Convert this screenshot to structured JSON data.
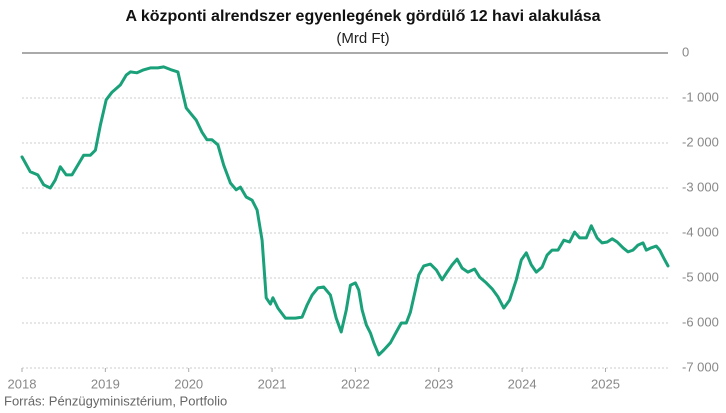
{
  "chart_data": {
    "type": "line",
    "title": "A központi alrendszer egyenlegének gördülő 12 havi alakulása",
    "subtitle": "(Mrd Ft)",
    "source": "Forrás: Pénzügyminisztérium, Portfolio",
    "xlim": [
      2018,
      2025.75
    ],
    "xticks": [
      2018,
      2019,
      2020,
      2021,
      2022,
      2023,
      2024,
      2025
    ],
    "ylim": [
      -7000,
      0
    ],
    "yticks": [
      0,
      {
        "value": -1000,
        "label": "-1 000"
      },
      {
        "value": -2000,
        "label": "-2 000"
      },
      {
        "value": -3000,
        "label": "-3 000"
      },
      {
        "value": -4000,
        "label": "-4 000"
      },
      {
        "value": -5000,
        "label": "-5 000"
      },
      {
        "value": -6000,
        "label": "-6 000"
      },
      {
        "value": -7000,
        "label": "-7 000"
      }
    ],
    "grid": true,
    "x": [
      2018.0,
      2018.1,
      2018.19,
      2018.26,
      2018.34,
      2018.4,
      2018.46,
      2018.53,
      2018.6,
      2018.67,
      2018.74,
      2018.82,
      2018.88,
      2018.94,
      2019.01,
      2019.08,
      2019.18,
      2019.25,
      2019.3,
      2019.38,
      2019.45,
      2019.54,
      2019.63,
      2019.7,
      2019.8,
      2019.87,
      2019.92,
      2019.97,
      2020.04,
      2020.09,
      2020.16,
      2020.22,
      2020.28,
      2020.35,
      2020.42,
      2020.5,
      2020.57,
      2020.62,
      2020.69,
      2020.76,
      2020.82,
      2020.88,
      2020.93,
      2020.98,
      2021.01,
      2021.07,
      2021.16,
      2021.28,
      2021.36,
      2021.42,
      2021.48,
      2021.55,
      2021.62,
      2021.7,
      2021.77,
      2021.83,
      2021.89,
      2021.94,
      2022.0,
      2022.04,
      2022.08,
      2022.13,
      2022.18,
      2022.22,
      2022.28,
      2022.34,
      2022.42,
      2022.49,
      2022.55,
      2022.61,
      2022.66,
      2022.72,
      2022.76,
      2022.82,
      2022.9,
      2022.97,
      2023.04,
      2023.1,
      2023.16,
      2023.22,
      2023.28,
      2023.35,
      2023.43,
      2023.49,
      2023.57,
      2023.64,
      2023.71,
      2023.78,
      2023.85,
      2023.93,
      2023.99,
      2024.05,
      2024.11,
      2024.17,
      2024.24,
      2024.3,
      2024.36,
      2024.43,
      2024.5,
      2024.57,
      2024.63,
      2024.69,
      2024.77,
      2024.83,
      2024.9,
      2024.96,
      2025.02,
      2025.08,
      2025.14,
      2025.21,
      2025.27,
      2025.33,
      2025.39,
      2025.45,
      2025.49,
      2025.55,
      2025.61,
      2025.65,
      2025.7,
      2025.75
    ],
    "series": [
      {
        "color": "#1aa179",
        "values": [
          -2310,
          -2640,
          -2710,
          -2930,
          -3000,
          -2820,
          -2530,
          -2710,
          -2710,
          -2490,
          -2270,
          -2270,
          -2160,
          -1600,
          -1040,
          -870,
          -710,
          -490,
          -420,
          -440,
          -380,
          -330,
          -330,
          -310,
          -380,
          -420,
          -820,
          -1220,
          -1380,
          -1490,
          -1760,
          -1930,
          -1930,
          -2040,
          -2490,
          -2890,
          -3040,
          -2980,
          -3200,
          -3270,
          -3490,
          -4160,
          -5440,
          -5580,
          -5440,
          -5670,
          -5890,
          -5890,
          -5870,
          -5600,
          -5380,
          -5220,
          -5200,
          -5380,
          -5890,
          -6200,
          -5710,
          -5160,
          -5110,
          -5270,
          -5710,
          -6040,
          -6220,
          -6440,
          -6710,
          -6600,
          -6440,
          -6200,
          -6000,
          -6000,
          -5760,
          -5270,
          -4930,
          -4730,
          -4690,
          -4820,
          -5040,
          -4870,
          -4710,
          -4580,
          -4780,
          -4870,
          -4800,
          -4980,
          -5110,
          -5240,
          -5420,
          -5670,
          -5490,
          -5040,
          -4600,
          -4440,
          -4710,
          -4870,
          -4760,
          -4490,
          -4380,
          -4380,
          -4160,
          -4200,
          -3980,
          -4110,
          -4110,
          -3840,
          -4110,
          -4220,
          -4200,
          -4130,
          -4200,
          -4330,
          -4420,
          -4380,
          -4270,
          -4220,
          -4380,
          -4330,
          -4290,
          -4380,
          -4560,
          -4730
        ]
      }
    ]
  }
}
